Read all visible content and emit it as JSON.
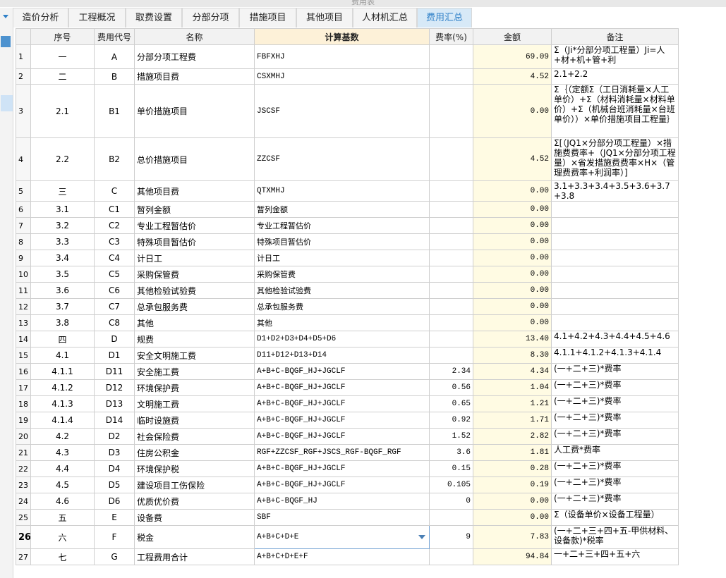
{
  "window_title": "费用表",
  "tabs": [
    "造价分析",
    "工程概况",
    "取费设置",
    "分部分项",
    "措施项目",
    "其他项目",
    "人材机汇总",
    "费用汇总"
  ],
  "active_tab": 7,
  "table": {
    "headers": [
      "序号",
      "费用代号",
      "名称",
      "计算基数",
      "费率(%)",
      "金额",
      "备注"
    ],
    "highlight_header": 3,
    "selected_row": 25,
    "rows": [
      {
        "no": "1",
        "seq": "一",
        "code": "A",
        "name": "分部分项工程费",
        "base": "FBFXHJ",
        "amount": "69.09",
        "note": "Σ（Ji*分部分项工程量）Ji=人+材+机+管+利"
      },
      {
        "no": "2",
        "seq": "二",
        "code": "B",
        "name": "措施项目费",
        "base": "CSXMHJ",
        "amount": "4.52",
        "note": "2.1+2.2"
      },
      {
        "no": "3",
        "seq": "2.1",
        "code": "B1",
        "name": "单价措施项目",
        "base": "JSCSF",
        "amount": "0.00",
        "note": "Σ｛（定额Σ（工日消耗量×人工单价）+Σ（材料消耗量×材料单价）+Σ（机械台班消耗量×台班单价））×单价措施项目工程量｝"
      },
      {
        "no": "4",
        "seq": "2.2",
        "code": "B2",
        "name": "总价措施项目",
        "base": "ZZCSF",
        "amount": "4.52",
        "note": "Σ[（JQ1×分部分项工程量）×措施费费率+（JQ1×分部分项工程量）×省发措施费费率×H×（管理费费率+利润率）]"
      },
      {
        "no": "5",
        "seq": "三",
        "code": "C",
        "name": "其他项目费",
        "base": "QTXMHJ",
        "amount": "0.00",
        "note": "3.1+3.3+3.4+3.5+3.6+3.7+3.8"
      },
      {
        "no": "6",
        "seq": "3.1",
        "code": "C1",
        "name": "暂列金额",
        "base": "暂列金额",
        "amount": "0.00"
      },
      {
        "no": "7",
        "seq": "3.2",
        "code": "C2",
        "name": "专业工程暂估价",
        "base": "专业工程暂估价",
        "amount": "0.00"
      },
      {
        "no": "8",
        "seq": "3.3",
        "code": "C3",
        "name": "特殊项目暂估价",
        "base": "特殊项目暂估价",
        "amount": "0.00"
      },
      {
        "no": "9",
        "seq": "3.4",
        "code": "C4",
        "name": "计日工",
        "base": "计日工",
        "amount": "0.00"
      },
      {
        "no": "10",
        "seq": "3.5",
        "code": "C5",
        "name": "采购保管费",
        "base": "采购保管费",
        "amount": "0.00"
      },
      {
        "no": "11",
        "seq": "3.6",
        "code": "C6",
        "name": "其他检验试验费",
        "base": "其他检验试验费",
        "amount": "0.00"
      },
      {
        "no": "12",
        "seq": "3.7",
        "code": "C7",
        "name": "总承包服务费",
        "base": "总承包服务费",
        "amount": "0.00"
      },
      {
        "no": "13",
        "seq": "3.8",
        "code": "C8",
        "name": "其他",
        "base": "其他",
        "amount": "0.00"
      },
      {
        "no": "14",
        "seq": "四",
        "code": "D",
        "name": "规费",
        "base": "D1+D2+D3+D4+D5+D6",
        "amount": "13.40",
        "note": "4.1+4.2+4.3+4.4+4.5+4.6"
      },
      {
        "no": "15",
        "seq": "4.1",
        "code": "D1",
        "name": "安全文明施工费",
        "base": "D11+D12+D13+D14",
        "amount": "8.30",
        "note": "4.1.1+4.1.2+4.1.3+4.1.4"
      },
      {
        "no": "16",
        "seq": "4.1.1",
        "code": "D11",
        "name": "安全施工费",
        "base": "A+B+C-BQGF_HJ+JGCLF",
        "rate": "2.34",
        "amount": "4.34",
        "note": "(一+二+三)*费率"
      },
      {
        "no": "17",
        "seq": "4.1.2",
        "code": "D12",
        "name": "环境保护费",
        "base": "A+B+C-BQGF_HJ+JGCLF",
        "rate": "0.56",
        "amount": "1.04",
        "note": "(一+二+三)*费率"
      },
      {
        "no": "18",
        "seq": "4.1.3",
        "code": "D13",
        "name": "文明施工费",
        "base": "A+B+C-BQGF_HJ+JGCLF",
        "rate": "0.65",
        "amount": "1.21",
        "note": "(一+二+三)*费率"
      },
      {
        "no": "19",
        "seq": "4.1.4",
        "code": "D14",
        "name": "临时设施费",
        "base": "A+B+C-BQGF_HJ+JGCLF",
        "rate": "0.92",
        "amount": "1.71",
        "note": "(一+二+三)*费率"
      },
      {
        "no": "20",
        "seq": "4.2",
        "code": "D2",
        "name": "社会保险费",
        "base": "A+B+C-BQGF_HJ+JGCLF",
        "rate": "1.52",
        "amount": "2.82",
        "note": "(一+二+三)*费率"
      },
      {
        "no": "21",
        "seq": "4.3",
        "code": "D3",
        "name": "住房公积金",
        "base": "RGF+ZZCSF_RGF+JSCS_RGF-BQGF_RGF",
        "rate": "3.6",
        "amount": "1.81",
        "note": "人工费*费率"
      },
      {
        "no": "22",
        "seq": "4.4",
        "code": "D4",
        "name": "环境保护税",
        "base": "A+B+C-BQGF_HJ+JGCLF",
        "rate": "0.15",
        "amount": "0.28",
        "note": "(一+二+三)*费率"
      },
      {
        "no": "23",
        "seq": "4.5",
        "code": "D5",
        "name": "建设项目工伤保险",
        "base": "A+B+C-BQGF_HJ+JGCLF",
        "rate": "0.105",
        "amount": "0.19",
        "note": "(一+二+三)*费率"
      },
      {
        "no": "24",
        "seq": "4.6",
        "code": "D6",
        "name": "优质优价费",
        "base": "A+B+C-BQGF_HJ",
        "rate": "0",
        "amount": "0.00",
        "note": "(一+二+三)*费率"
      },
      {
        "no": "25",
        "seq": "五",
        "code": "E",
        "name": "设备费",
        "base": "SBF",
        "amount": "0.00",
        "note": "Σ（设备单价×设备工程量）"
      },
      {
        "no": "26",
        "seq": "六",
        "code": "F",
        "name": "税金",
        "base": "A+B+C+D+E",
        "rate": "9",
        "amount": "7.83",
        "note": "(一+二+三+四+五-甲供材料、设备款)*税率"
      },
      {
        "no": "27",
        "seq": "七",
        "code": "G",
        "name": "工程费用合计",
        "base": "A+B+C+D+E+F",
        "amount": "94.84",
        "note": "一+二+三+四+五+六"
      }
    ]
  }
}
